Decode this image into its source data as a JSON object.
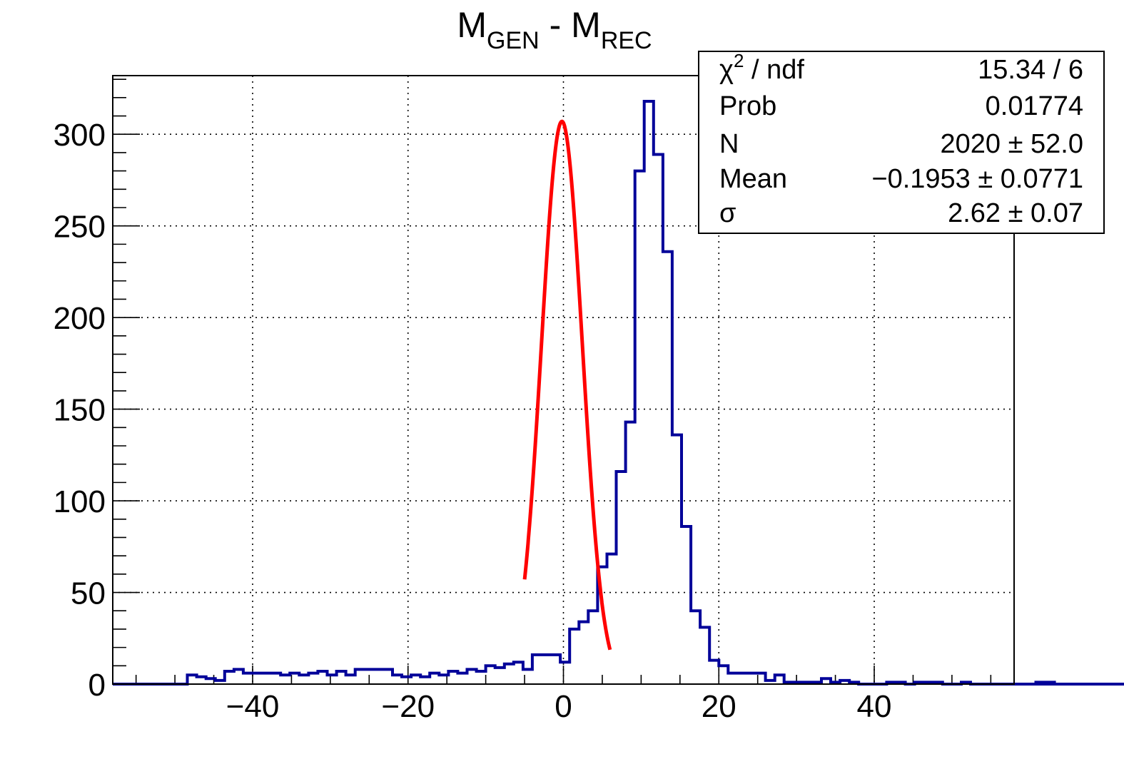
{
  "chart_data": {
    "type": "histogram",
    "title": {
      "main": "M",
      "sub1": "GEN",
      "mid": " - M",
      "sub2": "REC"
    },
    "xlabel": "",
    "ylabel": "",
    "xlim": [
      -58,
      58
    ],
    "ylim": [
      0,
      332
    ],
    "grid": true,
    "x_ticks": [
      -40,
      -20,
      0,
      20,
      40
    ],
    "x_tick_labels": [
      "−40",
      "−20",
      "0",
      "20",
      "40"
    ],
    "y_ticks": [
      0,
      50,
      100,
      150,
      200,
      250,
      300
    ],
    "y_tick_labels": [
      "0",
      "50",
      "100",
      "150",
      "200",
      "250",
      "300"
    ],
    "colors": {
      "histogram": "#000099",
      "fit": "#ff0000",
      "grid": "#000000"
    },
    "histogram": {
      "name": "",
      "bin_width": 1.2,
      "bin_start": -54.4,
      "values": [
        0,
        0,
        0,
        0,
        0,
        5,
        4,
        3,
        2,
        7,
        8,
        6,
        6,
        6,
        6,
        5,
        6,
        5,
        6,
        7,
        5,
        7,
        5,
        8,
        8,
        8,
        8,
        5,
        4,
        5,
        4,
        6,
        5,
        7,
        6,
        8,
        7,
        10,
        9,
        11,
        12,
        8,
        16,
        16,
        16,
        12,
        30,
        34,
        40,
        64,
        71,
        116,
        143,
        280,
        318,
        289,
        236,
        136,
        86,
        40,
        31,
        13,
        10,
        6,
        6,
        6,
        6,
        2,
        5,
        1,
        1,
        1,
        1,
        3,
        1,
        2,
        1,
        0,
        0,
        0,
        1,
        1,
        0,
        1,
        1,
        1,
        0,
        0,
        1,
        0,
        0,
        0,
        0,
        0,
        0,
        0,
        1,
        1,
        0,
        0,
        0,
        0,
        0,
        0,
        0,
        0,
        0,
        0,
        0,
        0
      ]
    },
    "fit": {
      "type": "gaussian",
      "constant": 307,
      "mean": -0.1953,
      "sigma": 2.62,
      "x_range": [
        -5.0,
        6.0
      ]
    },
    "stats_box": {
      "placement": "top-right",
      "rows": [
        {
          "label": "ndf",
          "chi_symbol": "χ",
          "chi_sup": "2",
          "chi_sep": " / ",
          "value": "15.34 / 6"
        },
        {
          "label": "Prob",
          "value": "0.01774"
        },
        {
          "label": "N",
          "value": "2020 ± 52.0"
        },
        {
          "label": "Mean",
          "value": "−0.1953 ± 0.0771"
        },
        {
          "label": "σ",
          "value": "2.62 ± 0.07"
        }
      ]
    }
  }
}
